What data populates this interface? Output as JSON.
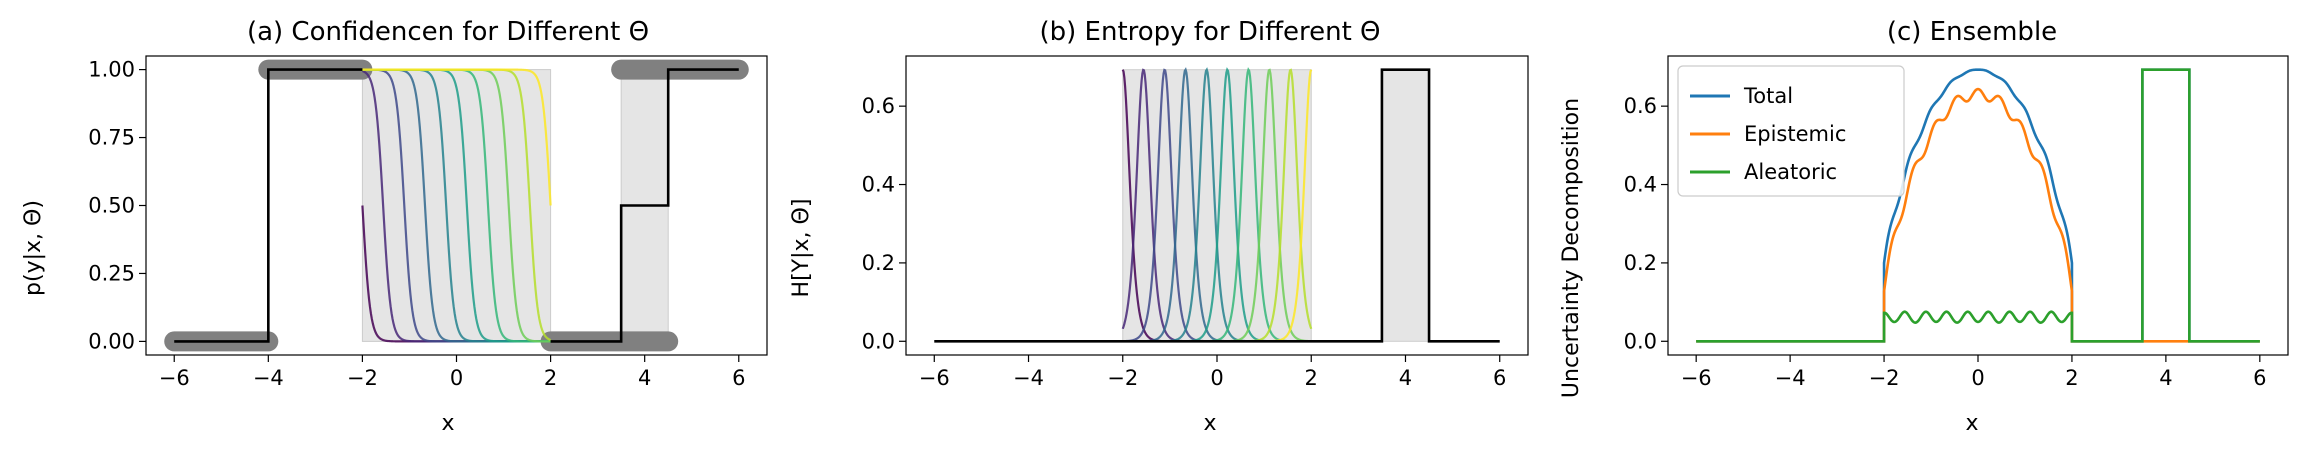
{
  "chart_data": [
    {
      "type": "line",
      "title": "(a) Confidencen for Different Θ",
      "xlabel": "x",
      "ylabel": "p(y|x, Θ)",
      "xlim": [
        -6.6,
        6.6
      ],
      "ylim": [
        -0.05,
        1.05
      ],
      "xticks": [
        -6,
        -4,
        -2,
        0,
        2,
        4,
        6
      ],
      "xtick_labels": [
        "−6",
        "−4",
        "−2",
        "0",
        "2",
        "4",
        "6"
      ],
      "yticks": [
        0.0,
        0.25,
        0.5,
        0.75,
        1.0
      ],
      "ytick_labels": [
        "0.00",
        "0.25",
        "0.50",
        "0.75",
        "1.00"
      ],
      "shaded_regions": [
        [
          -2,
          2
        ],
        [
          3.5,
          4.5
        ]
      ],
      "gray_segments": [
        {
          "x": [
            -6,
            -4
          ],
          "y": 0
        },
        {
          "x": [
            -4,
            -2
          ],
          "y": 1
        },
        {
          "x": [
            2,
            4.5
          ],
          "y": 0
        },
        {
          "x": [
            3.5,
            6
          ],
          "y": 1
        }
      ],
      "sigmoid_centers": [
        -2.0,
        -1.56,
        -1.11,
        -0.67,
        -0.22,
        0.22,
        0.67,
        1.11,
        1.56,
        2.0
      ],
      "step_function": {
        "x": [
          -6,
          -4,
          -4,
          3.5,
          3.5,
          4.5,
          4.5,
          6
        ],
        "y": [
          0,
          0,
          1,
          1,
          0.5,
          0.5,
          1,
          1
        ],
        "note_segment_gaps": [
          [
            -2,
            2
          ]
        ]
      }
    },
    {
      "type": "line",
      "title": "(b) Entropy for Different Θ",
      "xlabel": "x",
      "ylabel": "H[Y|x, Θ]",
      "xlim": [
        -6.6,
        6.6
      ],
      "ylim": [
        -0.035,
        0.728
      ],
      "xticks": [
        -6,
        -4,
        -2,
        0,
        2,
        4,
        6
      ],
      "xtick_labels": [
        "−6",
        "−4",
        "−2",
        "0",
        "2",
        "4",
        "6"
      ],
      "yticks": [
        0.0,
        0.2,
        0.4,
        0.6
      ],
      "ytick_labels": [
        "0.0",
        "0.2",
        "0.4",
        "0.6"
      ],
      "shaded_regions": [
        [
          -2,
          2
        ],
        [
          3.5,
          4.5
        ]
      ],
      "entropy_peak": 0.693,
      "entropy_centers": [
        -2.0,
        -1.56,
        -1.11,
        -0.67,
        -0.22,
        0.22,
        0.67,
        1.11,
        1.56,
        2.0
      ],
      "step_function": {
        "x": [
          -6,
          3.5,
          3.5,
          4.5,
          4.5,
          6
        ],
        "y": [
          0,
          0,
          0.693,
          0.693,
          0,
          0
        ]
      }
    },
    {
      "type": "line",
      "title": "(c) Ensemble",
      "xlabel": "x",
      "ylabel": "Uncertainty Decomposition",
      "xlim": [
        -6.6,
        6.6
      ],
      "ylim": [
        -0.035,
        0.728
      ],
      "xticks": [
        -6,
        -4,
        -2,
        0,
        2,
        4,
        6
      ],
      "xtick_labels": [
        "−6",
        "−4",
        "−2",
        "0",
        "2",
        "4",
        "6"
      ],
      "yticks": [
        0.0,
        0.2,
        0.4,
        0.6
      ],
      "ytick_labels": [
        "0.0",
        "0.2",
        "0.4",
        "0.6"
      ],
      "legend_position": "top-left",
      "series": [
        {
          "name": "Total",
          "color": "#1f77b4"
        },
        {
          "name": "Epistemic",
          "color": "#ff7f0e"
        },
        {
          "name": "Aleatoric",
          "color": "#2ca02c"
        }
      ],
      "region_ood": [
        3.5,
        4.5
      ],
      "region_id": [
        -2,
        2
      ],
      "peak_total": 0.693,
      "aleatoric_baseline_in_region": 0.08,
      "epistemic_peak": 0.64
    }
  ],
  "colors": {
    "gray_band": "#e5e5e5",
    "gray_marker": "#808080",
    "black": "#000000",
    "viridis": [
      "#440154",
      "#482878",
      "#3e4989",
      "#31688e",
      "#26828e",
      "#1f9e89",
      "#35b779",
      "#6ece58",
      "#b5de2b",
      "#fde725"
    ]
  }
}
